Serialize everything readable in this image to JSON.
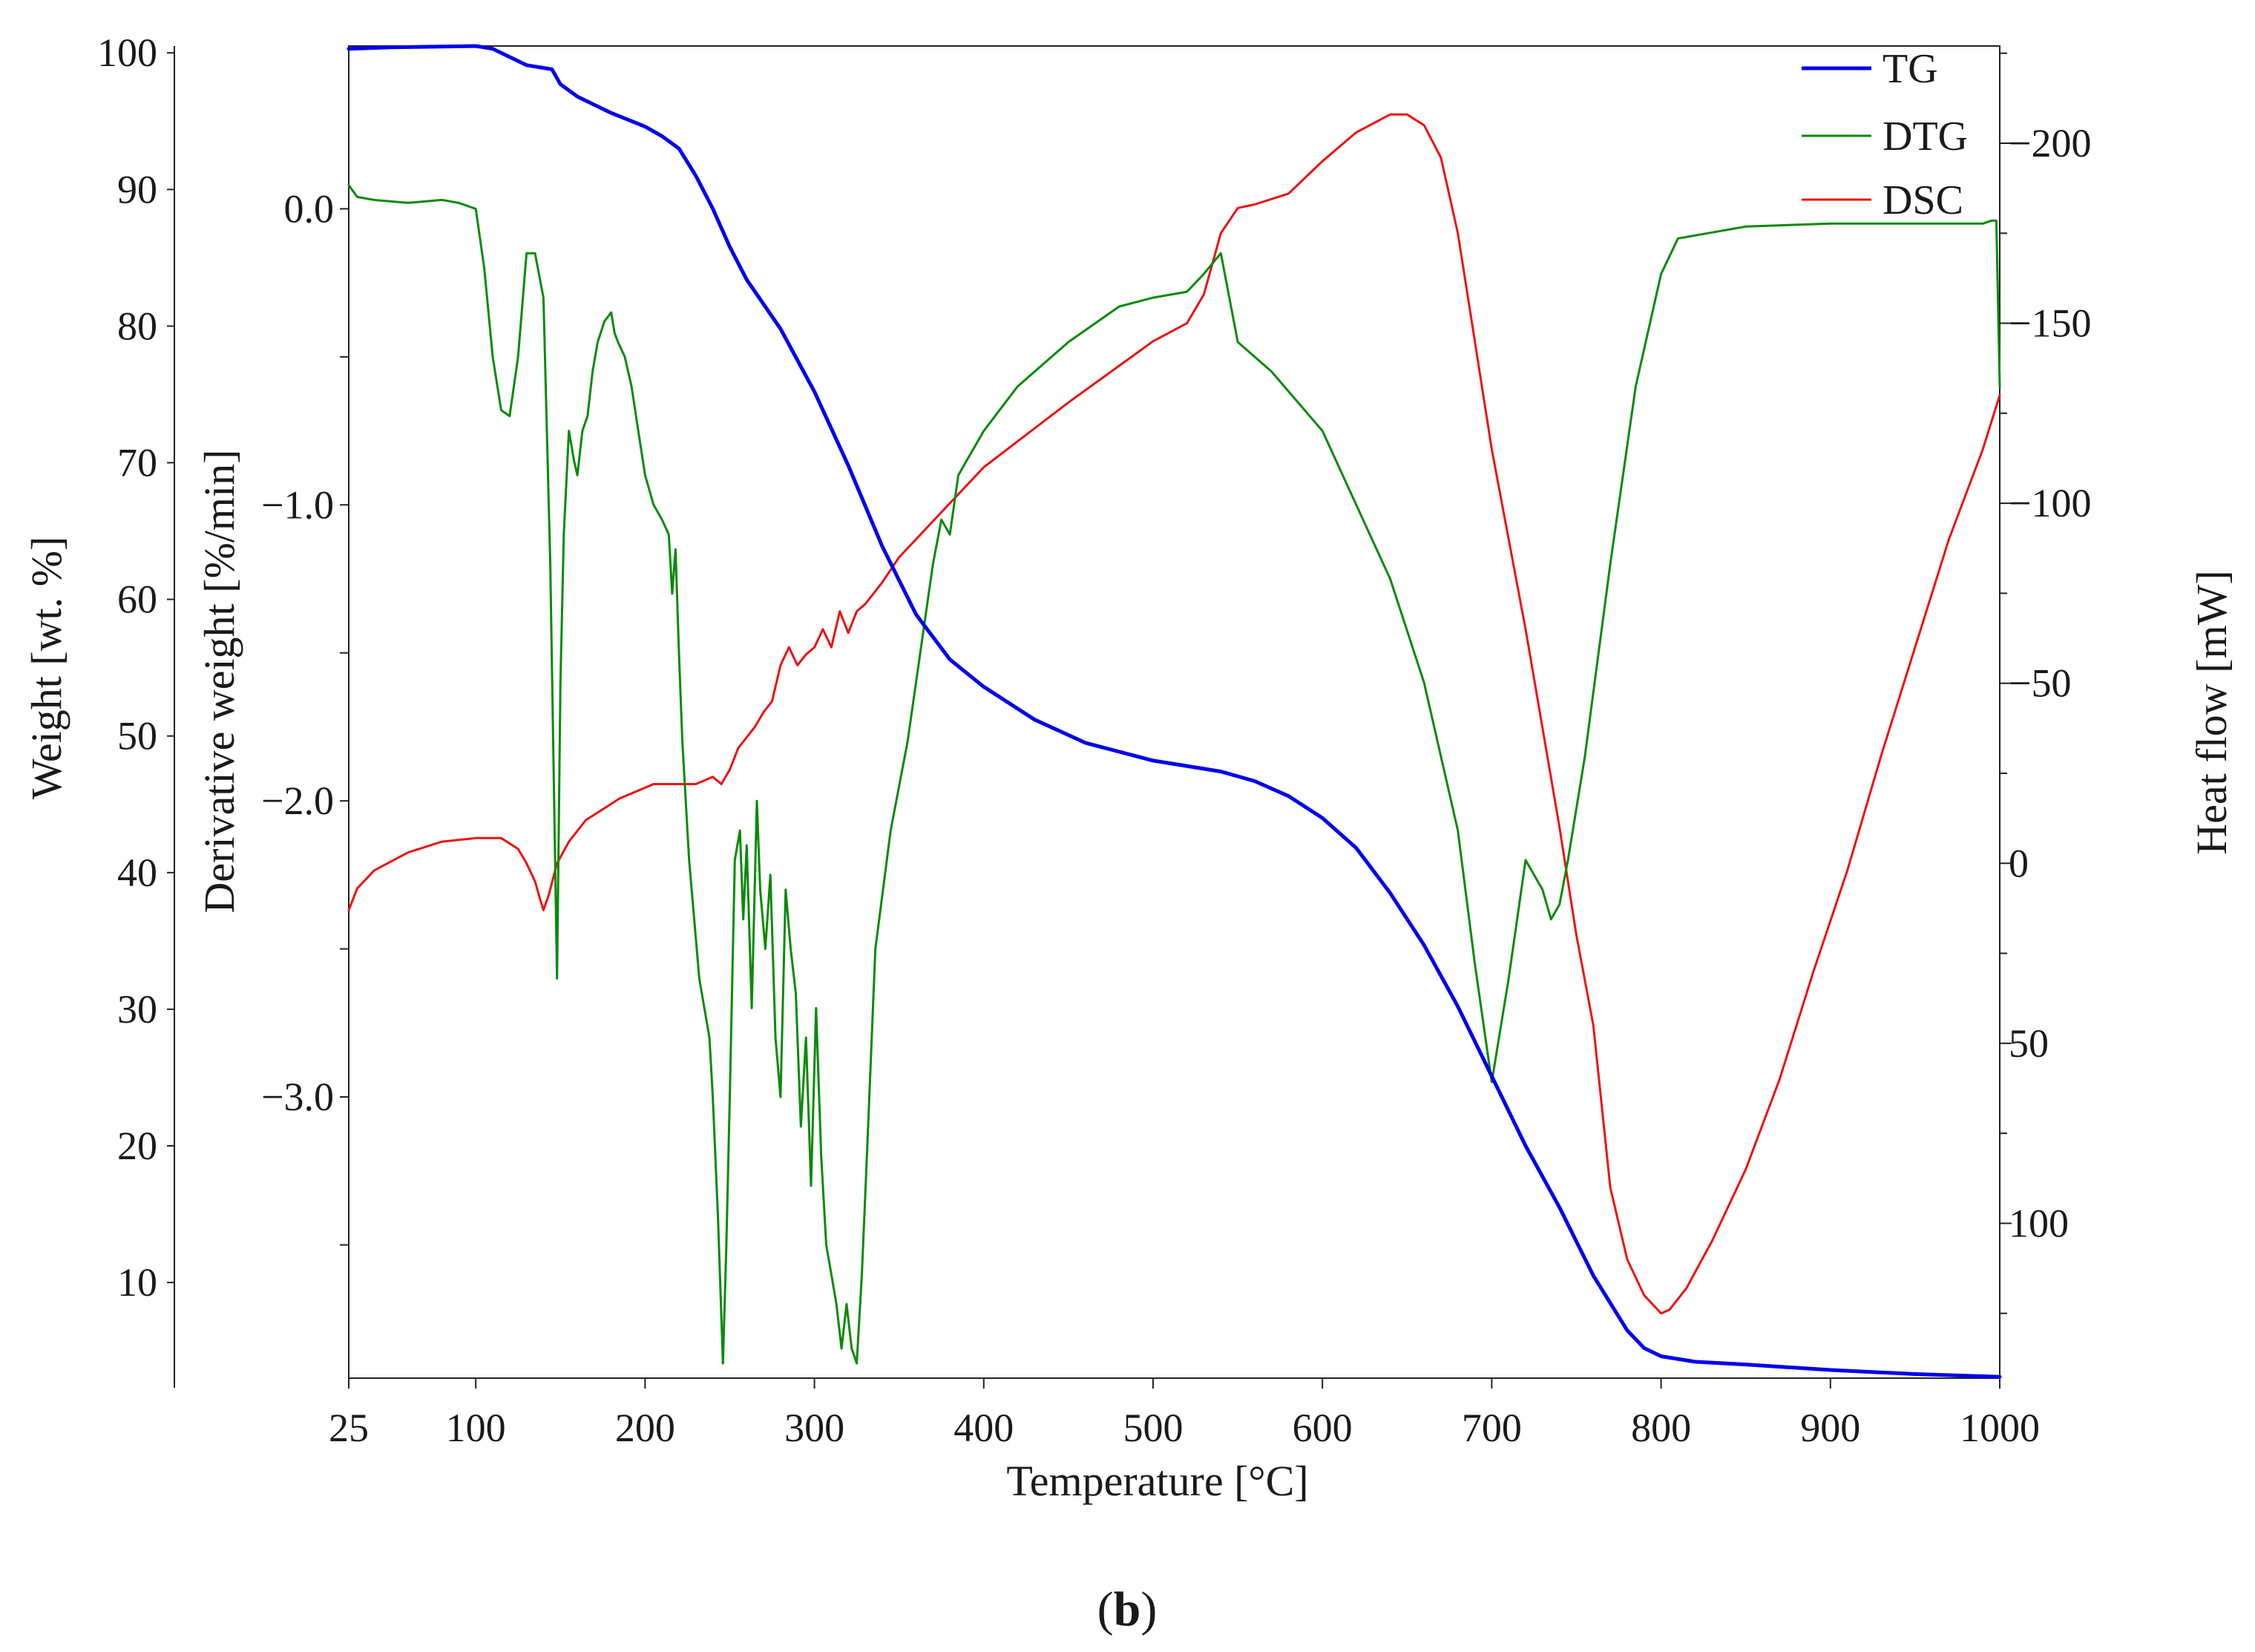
{
  "chart_data": {
    "type": "line",
    "panel_label": {
      "open": "(",
      "letter": "b",
      "close": ")"
    },
    "xlabel": "Temperature [°C]",
    "xlim": [
      25,
      1000
    ],
    "x_ticks": [
      25,
      100,
      200,
      300,
      400,
      500,
      600,
      700,
      800,
      900,
      1000
    ],
    "axes": {
      "weight": {
        "label": "Weight [wt. %]",
        "ylim": [
          3,
          100.5
        ],
        "ticks": [
          10,
          20,
          30,
          40,
          50,
          60,
          70,
          80,
          90,
          100
        ]
      },
      "derivative": {
        "label": "Derivative weight [%/min]",
        "ylim": [
          -3.95,
          0.55
        ],
        "ticks": [
          -3.0,
          -2.0,
          -1.0,
          0.0
        ],
        "tick_labels": [
          "−3.0",
          "−2.0",
          "−1.0",
          "0.0"
        ]
      },
      "heat_flow": {
        "label": "Heat flow [mW]",
        "ylim": [
          143,
          -227
        ],
        "ticks": [
          100,
          50,
          0,
          -50,
          -100,
          -150,
          -200
        ],
        "tick_labels": [
          "100",
          "50",
          "0",
          "−50",
          "−100",
          "−150",
          "−200"
        ]
      }
    },
    "legend": {
      "position": "top-right",
      "entries": [
        {
          "name": "TG",
          "color": "#0000ee"
        },
        {
          "name": "DTG",
          "color": "#0a8a0a"
        },
        {
          "name": "DSC",
          "color": "#ee1111"
        }
      ]
    },
    "series": [
      {
        "name": "TG",
        "axis": "weight",
        "color": "#0000ee",
        "x": [
          25,
          50,
          100,
          110,
          120,
          130,
          140,
          145,
          150,
          160,
          180,
          200,
          210,
          220,
          230,
          240,
          250,
          260,
          280,
          300,
          320,
          340,
          360,
          380,
          400,
          430,
          460,
          500,
          530,
          540,
          560,
          580,
          600,
          620,
          640,
          660,
          680,
          700,
          720,
          740,
          760,
          780,
          790,
          800,
          820,
          850,
          900,
          950,
          1000
        ],
        "y": [
          100.3,
          100.4,
          100.5,
          100.3,
          99.7,
          99.1,
          98.9,
          98.8,
          97.7,
          96.8,
          95.6,
          94.6,
          93.9,
          93.0,
          91.0,
          88.6,
          85.8,
          83.4,
          79.8,
          75.2,
          69.8,
          63.9,
          58.9,
          55.6,
          53.6,
          51.2,
          49.5,
          48.2,
          47.6,
          47.4,
          46.7,
          45.6,
          44.0,
          41.8,
          38.5,
          34.7,
          30.2,
          25.1,
          20.0,
          15.5,
          10.5,
          6.5,
          5.2,
          4.6,
          4.2,
          4.0,
          3.6,
          3.3,
          3.1
        ]
      },
      {
        "name": "DTG",
        "axis": "derivative",
        "color": "#0a8a0a",
        "x": [
          25,
          30,
          40,
          60,
          80,
          90,
          100,
          105,
          110,
          115,
          120,
          125,
          130,
          135,
          140,
          144,
          148,
          150,
          152,
          155,
          158,
          160,
          163,
          166,
          169,
          172,
          176,
          180,
          182,
          184,
          188,
          192,
          196,
          200,
          205,
          210,
          214,
          216,
          218,
          220,
          222,
          226,
          232,
          238,
          240,
          243,
          246,
          248,
          250,
          253,
          256,
          258,
          260,
          263,
          266,
          268,
          271,
          274,
          277,
          280,
          283,
          286,
          289,
          292,
          295,
          298,
          301,
          304,
          307,
          310,
          313,
          316,
          319,
          322,
          325,
          328,
          331,
          336,
          345,
          355,
          360,
          365,
          370,
          375,
          380,
          385,
          390,
          400,
          420,
          450,
          480,
          500,
          520,
          530,
          540,
          550,
          570,
          600,
          620,
          640,
          660,
          680,
          690,
          700,
          710,
          720,
          725,
          730,
          735,
          740,
          745,
          755,
          770,
          785,
          800,
          810,
          830,
          850,
          900,
          950,
          990,
          995,
          998,
          1000
        ],
        "y": [
          0.08,
          0.04,
          0.03,
          0.02,
          0.03,
          0.02,
          0.0,
          -0.2,
          -0.5,
          -0.68,
          -0.7,
          -0.5,
          -0.15,
          -0.15,
          -0.3,
          -1.2,
          -2.6,
          -1.6,
          -1.1,
          -0.75,
          -0.85,
          -0.9,
          -0.75,
          -0.7,
          -0.55,
          -0.45,
          -0.38,
          -0.35,
          -0.42,
          -0.45,
          -0.5,
          -0.6,
          -0.75,
          -0.9,
          -1.0,
          -1.05,
          -1.1,
          -1.3,
          -1.15,
          -1.5,
          -1.8,
          -2.2,
          -2.6,
          -2.8,
          -3.0,
          -3.4,
          -3.9,
          -3.5,
          -3.0,
          -2.2,
          -2.1,
          -2.4,
          -2.15,
          -2.7,
          -2.0,
          -2.3,
          -2.5,
          -2.25,
          -2.8,
          -3.0,
          -2.3,
          -2.5,
          -2.65,
          -3.1,
          -2.8,
          -3.3,
          -2.7,
          -3.2,
          -3.5,
          -3.6,
          -3.7,
          -3.85,
          -3.7,
          -3.85,
          -3.9,
          -3.6,
          -3.2,
          -2.5,
          -2.1,
          -1.8,
          -1.6,
          -1.4,
          -1.2,
          -1.05,
          -1.1,
          -0.9,
          -0.85,
          -0.75,
          -0.6,
          -0.45,
          -0.33,
          -0.3,
          -0.28,
          -0.22,
          -0.15,
          -0.45,
          -0.55,
          -0.75,
          -1.0,
          -1.25,
          -1.6,
          -2.1,
          -2.55,
          -2.95,
          -2.6,
          -2.2,
          -2.25,
          -2.3,
          -2.4,
          -2.35,
          -2.2,
          -1.85,
          -1.2,
          -0.6,
          -0.22,
          -0.1,
          -0.08,
          -0.06,
          -0.05,
          -0.05,
          -0.05,
          -0.04,
          -0.04,
          -0.6
        ]
      },
      {
        "name": "DSC",
        "axis": "heat_flow",
        "color": "#ee1111",
        "x": [
          25,
          30,
          40,
          60,
          80,
          100,
          115,
          125,
          130,
          135,
          138,
          140,
          143,
          148,
          155,
          165,
          175,
          185,
          195,
          205,
          215,
          220,
          230,
          240,
          245,
          250,
          255,
          260,
          265,
          270,
          275,
          280,
          285,
          290,
          295,
          300,
          305,
          310,
          315,
          320,
          325,
          330,
          340,
          350,
          360,
          370,
          380,
          400,
          450,
          500,
          520,
          530,
          540,
          550,
          560,
          580,
          600,
          620,
          640,
          650,
          660,
          670,
          680,
          690,
          700,
          720,
          740,
          750,
          760,
          770,
          780,
          790,
          800,
          805,
          815,
          830,
          850,
          870,
          890,
          910,
          930,
          950,
          970,
          990,
          1000
        ],
        "y": [
          13,
          7,
          2,
          -3,
          -6,
          -7,
          -7,
          -4,
          0,
          5,
          10,
          13,
          9,
          0,
          -6,
          -12,
          -15,
          -18,
          -20,
          -22,
          -22,
          -22,
          -22,
          -24,
          -22,
          -26,
          -32,
          -35,
          -38,
          -42,
          -45,
          -55,
          -60,
          -55,
          -58,
          -60,
          -65,
          -60,
          -70,
          -64,
          -70,
          -72,
          -78,
          -85,
          -90,
          -95,
          -100,
          -110,
          -128,
          -145,
          -150,
          -158,
          -175,
          -182,
          -183,
          -186,
          -195,
          -203,
          -208,
          -208,
          -205,
          -196,
          -175,
          -145,
          -115,
          -65,
          -10,
          20,
          45,
          90,
          110,
          120,
          125,
          124,
          118,
          105,
          85,
          60,
          30,
          2,
          -30,
          -60,
          -90,
          -115,
          -130
        ]
      }
    ]
  }
}
